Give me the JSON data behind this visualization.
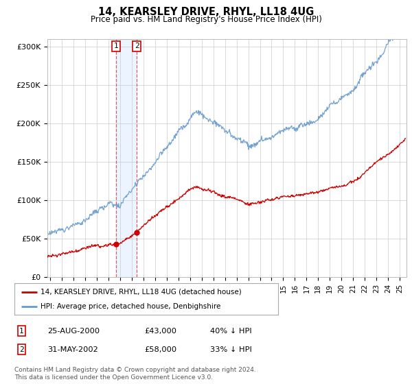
{
  "title": "14, KEARSLEY DRIVE, RHYL, LL18 4UG",
  "subtitle": "Price paid vs. HM Land Registry's House Price Index (HPI)",
  "ylabel_ticks": [
    "£0",
    "£50K",
    "£100K",
    "£150K",
    "£200K",
    "£250K",
    "£300K"
  ],
  "ylim": [
    0,
    310000
  ],
  "hpi_color": "#6699cc",
  "price_color": "#cc0000",
  "sale1": {
    "date_num": 2000.65,
    "price": 43000,
    "label": "1"
  },
  "sale2": {
    "date_num": 2002.42,
    "price": 58000,
    "label": "2"
  },
  "legend_line1": "14, KEARSLEY DRIVE, RHYL, LL18 4UG (detached house)",
  "legend_line2": "HPI: Average price, detached house, Denbighshire",
  "table_row1": [
    "1",
    "25-AUG-2000",
    "£43,000",
    "40% ↓ HPI"
  ],
  "table_row2": [
    "2",
    "31-MAY-2002",
    "£58,000",
    "33% ↓ HPI"
  ],
  "footnote": "Contains HM Land Registry data © Crown copyright and database right 2024.\nThis data is licensed under the Open Government Licence v3.0.",
  "bg_color": "#ffffff",
  "plot_bg": "#ffffff",
  "grid_color": "#cccccc",
  "shade_color": "#ddeeff"
}
